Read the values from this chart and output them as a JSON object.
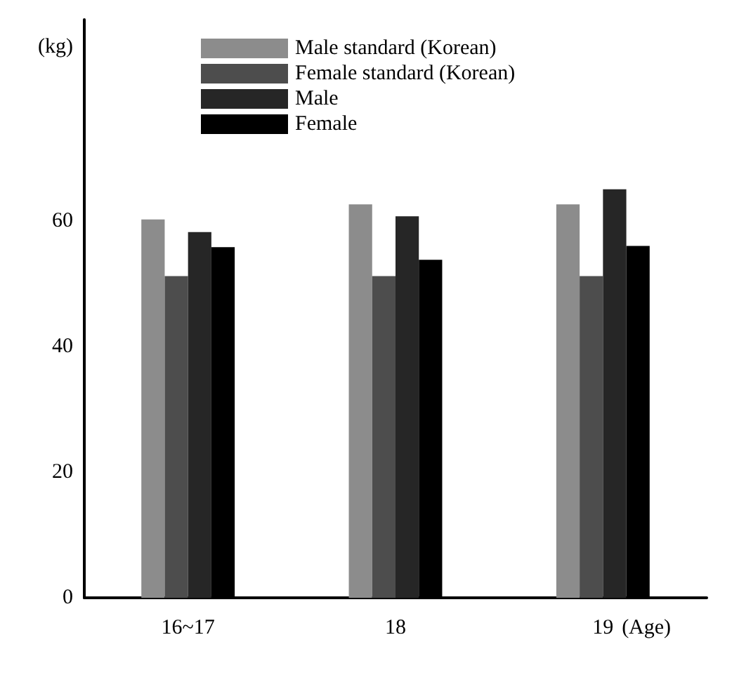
{
  "chart_data": {
    "type": "bar",
    "ylabel": "(kg)",
    "xlabel": "(Age)",
    "categories": [
      "16~17",
      "18",
      "19"
    ],
    "series": [
      {
        "name": "Male standard (Korean)",
        "color": "#8c8c8c",
        "values": [
          60.2,
          62.6,
          62.6
        ]
      },
      {
        "name": "Female standard (Korean)",
        "color": "#4d4d4d",
        "values": [
          51.2,
          51.2,
          51.2
        ]
      },
      {
        "name": "Male",
        "color": "#262626",
        "values": [
          58.2,
          60.7,
          65
        ]
      },
      {
        "name": "Female",
        "color": "#000000",
        "values": [
          55.8,
          53.8,
          56
        ]
      }
    ],
    "ylim": [
      0,
      92
    ],
    "yticks": [
      0,
      20,
      40,
      60
    ],
    "grid": false,
    "legend": "top"
  }
}
